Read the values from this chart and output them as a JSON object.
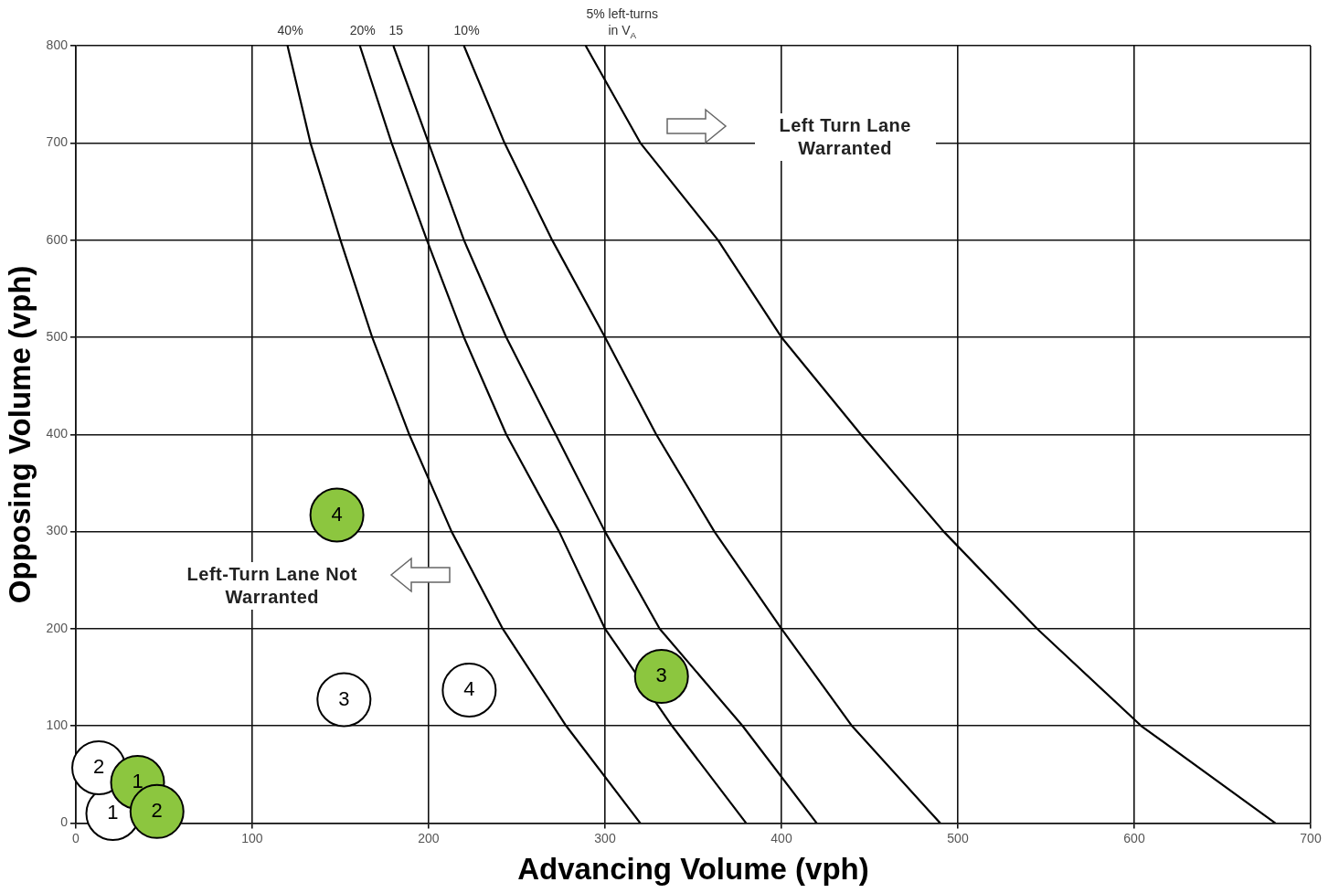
{
  "chart_data": {
    "type": "line",
    "xlabel": "Advancing Volume (vph)",
    "ylabel": "Opposing Volume (vph)",
    "xlim": [
      0,
      700
    ],
    "xticks": [
      0,
      100,
      200,
      300,
      400,
      500,
      600,
      700
    ],
    "ylim": [
      0,
      800
    ],
    "yticks": [
      0,
      100,
      200,
      300,
      400,
      500,
      600,
      700,
      800
    ],
    "grid": true,
    "legend": false,
    "line_style": "solid",
    "series": [
      {
        "name": "40%",
        "type": "line",
        "color": "#000000",
        "marker": "none",
        "x": [
          120,
          133,
          150,
          168,
          189,
          213,
          242,
          278,
          320
        ],
        "values": [
          800,
          700,
          600,
          500,
          400,
          300,
          200,
          100,
          0
        ]
      },
      {
        "name": "20%",
        "type": "line",
        "color": "#000000",
        "marker": "none",
        "x": [
          161,
          179,
          199,
          220,
          244,
          274,
          300,
          338,
          380
        ],
        "values": [
          800,
          700,
          600,
          500,
          400,
          300,
          200,
          100,
          0
        ]
      },
      {
        "name": "15",
        "type": "line",
        "color": "#000000",
        "marker": "none",
        "x": [
          180,
          200,
          220,
          244,
          272,
          300,
          331,
          378,
          420
        ],
        "values": [
          800,
          700,
          600,
          500,
          400,
          300,
          200,
          100,
          0
        ]
      },
      {
        "name": "10%",
        "type": "line",
        "color": "#000000",
        "marker": "none",
        "x": [
          220,
          243,
          270,
          300,
          329,
          362,
          400,
          440,
          490
        ],
        "values": [
          800,
          700,
          600,
          500,
          400,
          300,
          200,
          100,
          0
        ]
      },
      {
        "name": "5% left-turns in V$_{A}$",
        "type": "line",
        "color": "#000000",
        "marker": "none",
        "x": [
          289,
          320,
          364,
          400,
          445,
          492,
          545,
          604,
          680
        ],
        "values": [
          800,
          700,
          600,
          500,
          400,
          300,
          200,
          100,
          0
        ]
      },
      {
        "type": "scatter",
        "color": "#ffffff",
        "marker": "circle",
        "x": [
          21,
          13,
          152,
          223
        ],
        "values": [
          10,
          57,
          127,
          137
        ]
      },
      {
        "type": "scatter",
        "color": "#8cc63f",
        "marker": "circle",
        "x": [
          35,
          46,
          332,
          148
        ],
        "values": [
          42,
          12,
          151,
          317
        ]
      }
    ],
    "annotations": [
      "Left Turn Lane Warranted",
      "Left-Turn Lane Not Warranted",
      {
        "text": "1",
        "x": 21,
        "y": 10
      },
      {
        "text": "2",
        "x": 13,
        "y": 57
      },
      {
        "text": "3",
        "x": 152,
        "y": 127
      },
      {
        "text": "4",
        "x": 223,
        "y": 137
      },
      {
        "text": "1",
        "x": 35,
        "y": 42
      },
      {
        "text": "2",
        "x": 46,
        "y": 12
      },
      {
        "text": "3",
        "x": 332,
        "y": 151
      },
      {
        "text": "4",
        "x": 148,
        "y": 317
      }
    ]
  }
}
